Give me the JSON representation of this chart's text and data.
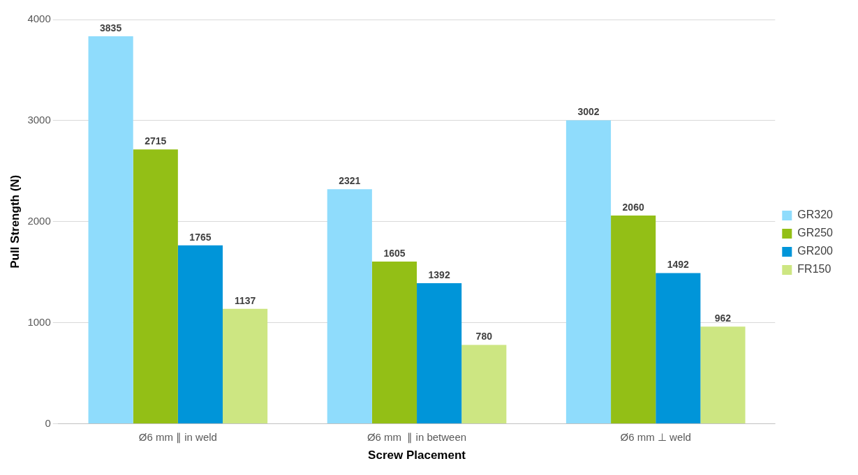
{
  "chart_data": {
    "type": "bar",
    "xlabel": "Screw Placement",
    "ylabel": "Pull Strength (N)",
    "categories": [
      "Ø6 mm ∥ in weld",
      "Ø6 mm  ∥ in between",
      "Ø6 mm ⊥ weld"
    ],
    "series": [
      {
        "name": "GR320",
        "color": "#8fdcfc",
        "values": [
          3835,
          2321,
          3002
        ]
      },
      {
        "name": "GR250",
        "color": "#93bf16",
        "values": [
          2715,
          1605,
          2060
        ]
      },
      {
        "name": "GR200",
        "color": "#0095d9",
        "values": [
          1765,
          1392,
          1492
        ]
      },
      {
        "name": "FR150",
        "color": "#cde682",
        "values": [
          1137,
          780,
          962
        ]
      }
    ],
    "ylim": [
      0,
      4000
    ],
    "yticks": [
      0,
      1000,
      2000,
      3000,
      4000
    ],
    "grid": "y",
    "legend": "right",
    "data_labels": true
  }
}
